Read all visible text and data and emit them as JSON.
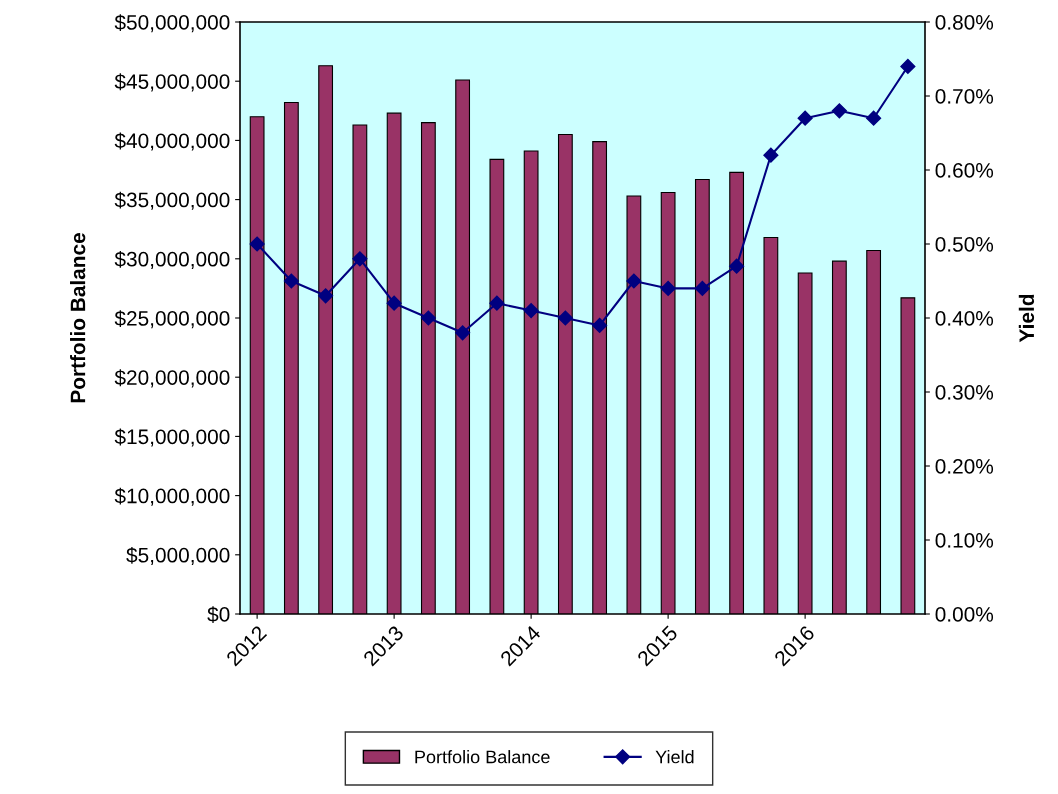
{
  "chart_data": {
    "type": "bar",
    "categories": [
      "2012",
      null,
      null,
      null,
      "2013",
      null,
      null,
      null,
      "2014",
      null,
      null,
      null,
      "2015",
      null,
      null,
      null,
      "2016",
      null,
      null,
      null
    ],
    "series": [
      {
        "name": "Portfolio Balance",
        "color": "#993366",
        "values": [
          42000000,
          43200000,
          46300000,
          41300000,
          42300000,
          41500000,
          45100000,
          38400000,
          39100000,
          40500000,
          39900000,
          35300000,
          35600000,
          36700000,
          37300000,
          31800000,
          28800000,
          29800000,
          30700000,
          26700000
        ]
      },
      {
        "name": "Yield",
        "type": "line",
        "axis": "y2",
        "color": "#000080",
        "marker": "diamond",
        "values": [
          0.5,
          0.45,
          0.43,
          0.48,
          0.42,
          0.4,
          0.38,
          0.42,
          0.41,
          0.4,
          0.39,
          0.45,
          0.44,
          0.44,
          0.47,
          0.62,
          0.67,
          0.68,
          0.67,
          0.74
        ]
      }
    ],
    "ylabel": "Portfolio Balance",
    "y2label": "Yield",
    "ylim": [
      0,
      50000000
    ],
    "yticks": [
      {
        "value": 0,
        "label": "$0"
      },
      {
        "value": 5000000,
        "label": "$5,000,000"
      },
      {
        "value": 10000000,
        "label": "$10,000,000"
      },
      {
        "value": 15000000,
        "label": "$15,000,000"
      },
      {
        "value": 20000000,
        "label": "$20,000,000"
      },
      {
        "value": 25000000,
        "label": "$25,000,000"
      },
      {
        "value": 30000000,
        "label": "$30,000,000"
      },
      {
        "value": 35000000,
        "label": "$35,000,000"
      },
      {
        "value": 40000000,
        "label": "$40,000,000"
      },
      {
        "value": 45000000,
        "label": "$45,000,000"
      },
      {
        "value": 50000000,
        "label": "$50,000,000"
      }
    ],
    "y2lim": [
      0,
      0.8
    ],
    "y2ticks": [
      {
        "value": 0,
        "label": "0.00%"
      },
      {
        "value": 0.1,
        "label": "0.10%"
      },
      {
        "value": 0.2,
        "label": "0.20%"
      },
      {
        "value": 0.3,
        "label": "0.30%"
      },
      {
        "value": 0.4,
        "label": "0.40%"
      },
      {
        "value": 0.5,
        "label": "0.50%"
      },
      {
        "value": 0.6,
        "label": "0.60%"
      },
      {
        "value": 0.7,
        "label": "0.70%"
      },
      {
        "value": 0.8,
        "label": "0.80%"
      }
    ],
    "grid": false,
    "legend": "bottom",
    "line_style": "solid"
  }
}
